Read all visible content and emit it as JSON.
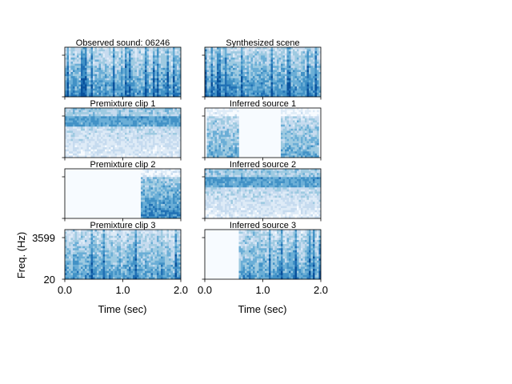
{
  "chart_data": {
    "type": "heatmap",
    "figure_description_free": true,
    "colormap": [
      "#f7fbff",
      "#deebf7",
      "#c6dbef",
      "#9ecae1",
      "#6baed6",
      "#4292c6",
      "#2171b5",
      "#08519c"
    ],
    "time_range_sec": [
      0.0,
      2.0
    ],
    "freq_range_hz": [
      20,
      3599
    ],
    "xlabel": "Time (sec)",
    "ylabel": "Freq. (Hz)",
    "xticks": [
      {
        "value": 0.0,
        "label": "0.0"
      },
      {
        "value": 1.0,
        "label": "1.0"
      },
      {
        "value": 2.0,
        "label": "2.0"
      }
    ],
    "yticks": [
      {
        "value": 20,
        "label": "20"
      },
      {
        "value": 3599,
        "label": "3599"
      }
    ],
    "panels": [
      {
        "id": "observed",
        "title": "Observed sound: 06246",
        "column": 0,
        "row": 0,
        "active_sec": [
          0.0,
          2.0
        ],
        "texture": "scene",
        "level": 0.55
      },
      {
        "id": "synth",
        "title": "Synthesized scene",
        "column": 1,
        "row": 0,
        "active_sec": [
          0.0,
          2.0
        ],
        "texture": "scene",
        "level": 0.55
      },
      {
        "id": "pre1",
        "title": "Premixture clip 1",
        "column": 0,
        "row": 1,
        "active_sec": [
          0.0,
          2.0
        ],
        "texture": "noise",
        "level": 0.45
      },
      {
        "id": "inf1",
        "title": "Inferred source 1",
        "column": 1,
        "row": 1,
        "active_sec": [
          [
            0.05,
            0.57
          ],
          [
            1.3,
            1.97
          ]
        ],
        "texture": "burst",
        "level": 0.35
      },
      {
        "id": "pre2",
        "title": "Premixture clip 2",
        "column": 0,
        "row": 2,
        "active_sec": [
          1.3,
          2.0
        ],
        "texture": "burst",
        "level": 0.5
      },
      {
        "id": "inf2",
        "title": "Inferred source 2",
        "column": 1,
        "row": 2,
        "active_sec": [
          0.0,
          2.0
        ],
        "texture": "noise",
        "level": 0.45
      },
      {
        "id": "pre3",
        "title": "Premixture clip 3",
        "column": 0,
        "row": 3,
        "active_sec": [
          0.0,
          2.0
        ],
        "texture": "scene",
        "level": 0.5
      },
      {
        "id": "inf3",
        "title": "Inferred source 3",
        "column": 1,
        "row": 3,
        "active_sec": [
          0.57,
          2.0
        ],
        "texture": "scene",
        "level": 0.5
      }
    ]
  }
}
